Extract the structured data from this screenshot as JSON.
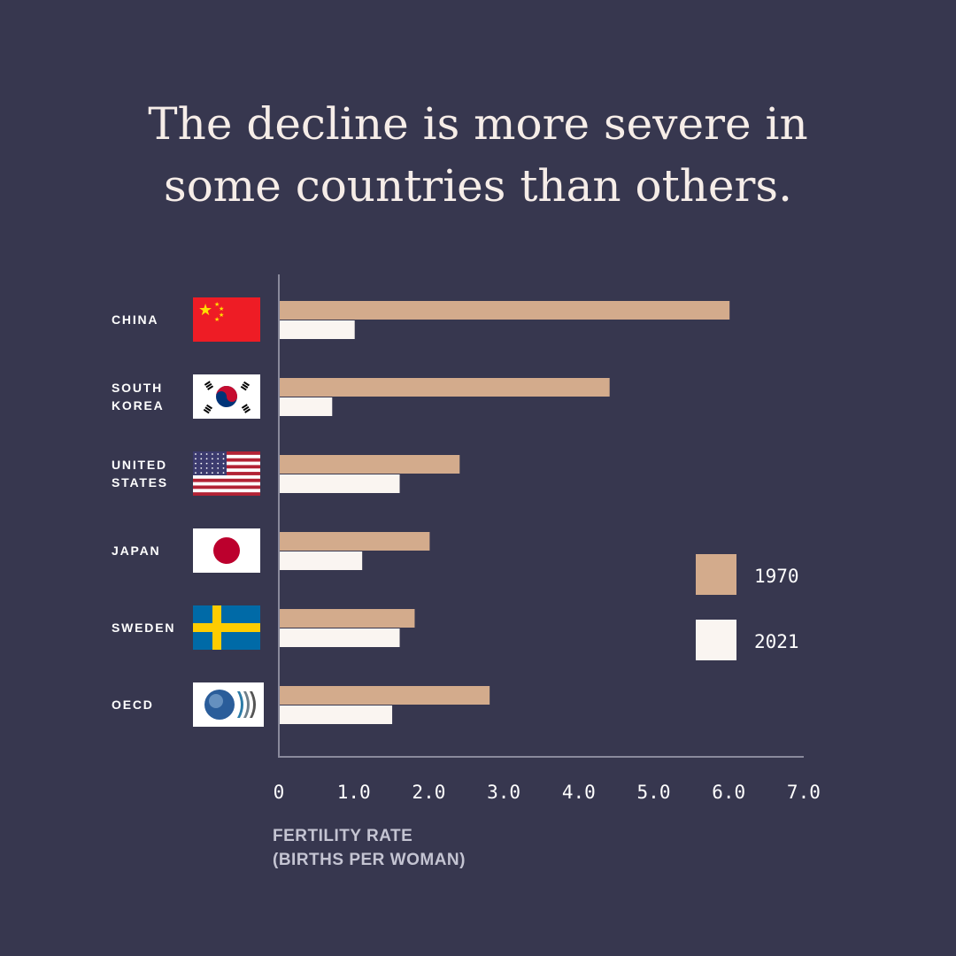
{
  "title_lines": [
    "The decline is more severe in",
    "some countries than others."
  ],
  "colors": {
    "background": "#37374f",
    "s1970": "#d3ab8c",
    "s2021": "#faf5f1"
  },
  "chart_data": {
    "type": "bar",
    "orientation": "horizontal",
    "title": "The decline is more severe in some countries than others.",
    "categories": [
      [
        "CHINA"
      ],
      [
        "SOUTH",
        "KOREA"
      ],
      [
        "UNITED",
        "STATES"
      ],
      [
        "JAPAN"
      ],
      [
        "SWEDEN"
      ],
      [
        "OECD"
      ]
    ],
    "flags": [
      "china-flag",
      "south-korea-flag",
      "united-states-flag",
      "japan-flag",
      "sweden-flag",
      "oecd-logo"
    ],
    "series": [
      {
        "name": "1970",
        "values": [
          6.0,
          4.4,
          2.4,
          2.0,
          1.8,
          2.8
        ]
      },
      {
        "name": "2021",
        "values": [
          1.0,
          0.7,
          1.6,
          1.1,
          1.6,
          1.5
        ]
      }
    ],
    "xlim": [
      0,
      7
    ],
    "xticks": [
      "0",
      "1.0",
      "2.0",
      "3.0",
      "4.0",
      "5.0",
      "6.0",
      "7.0"
    ],
    "xlabel_lines": [
      "FERTILITY RATE",
      "(BIRTHS PER WOMAN)"
    ],
    "legend_position": "right",
    "grid": false
  }
}
